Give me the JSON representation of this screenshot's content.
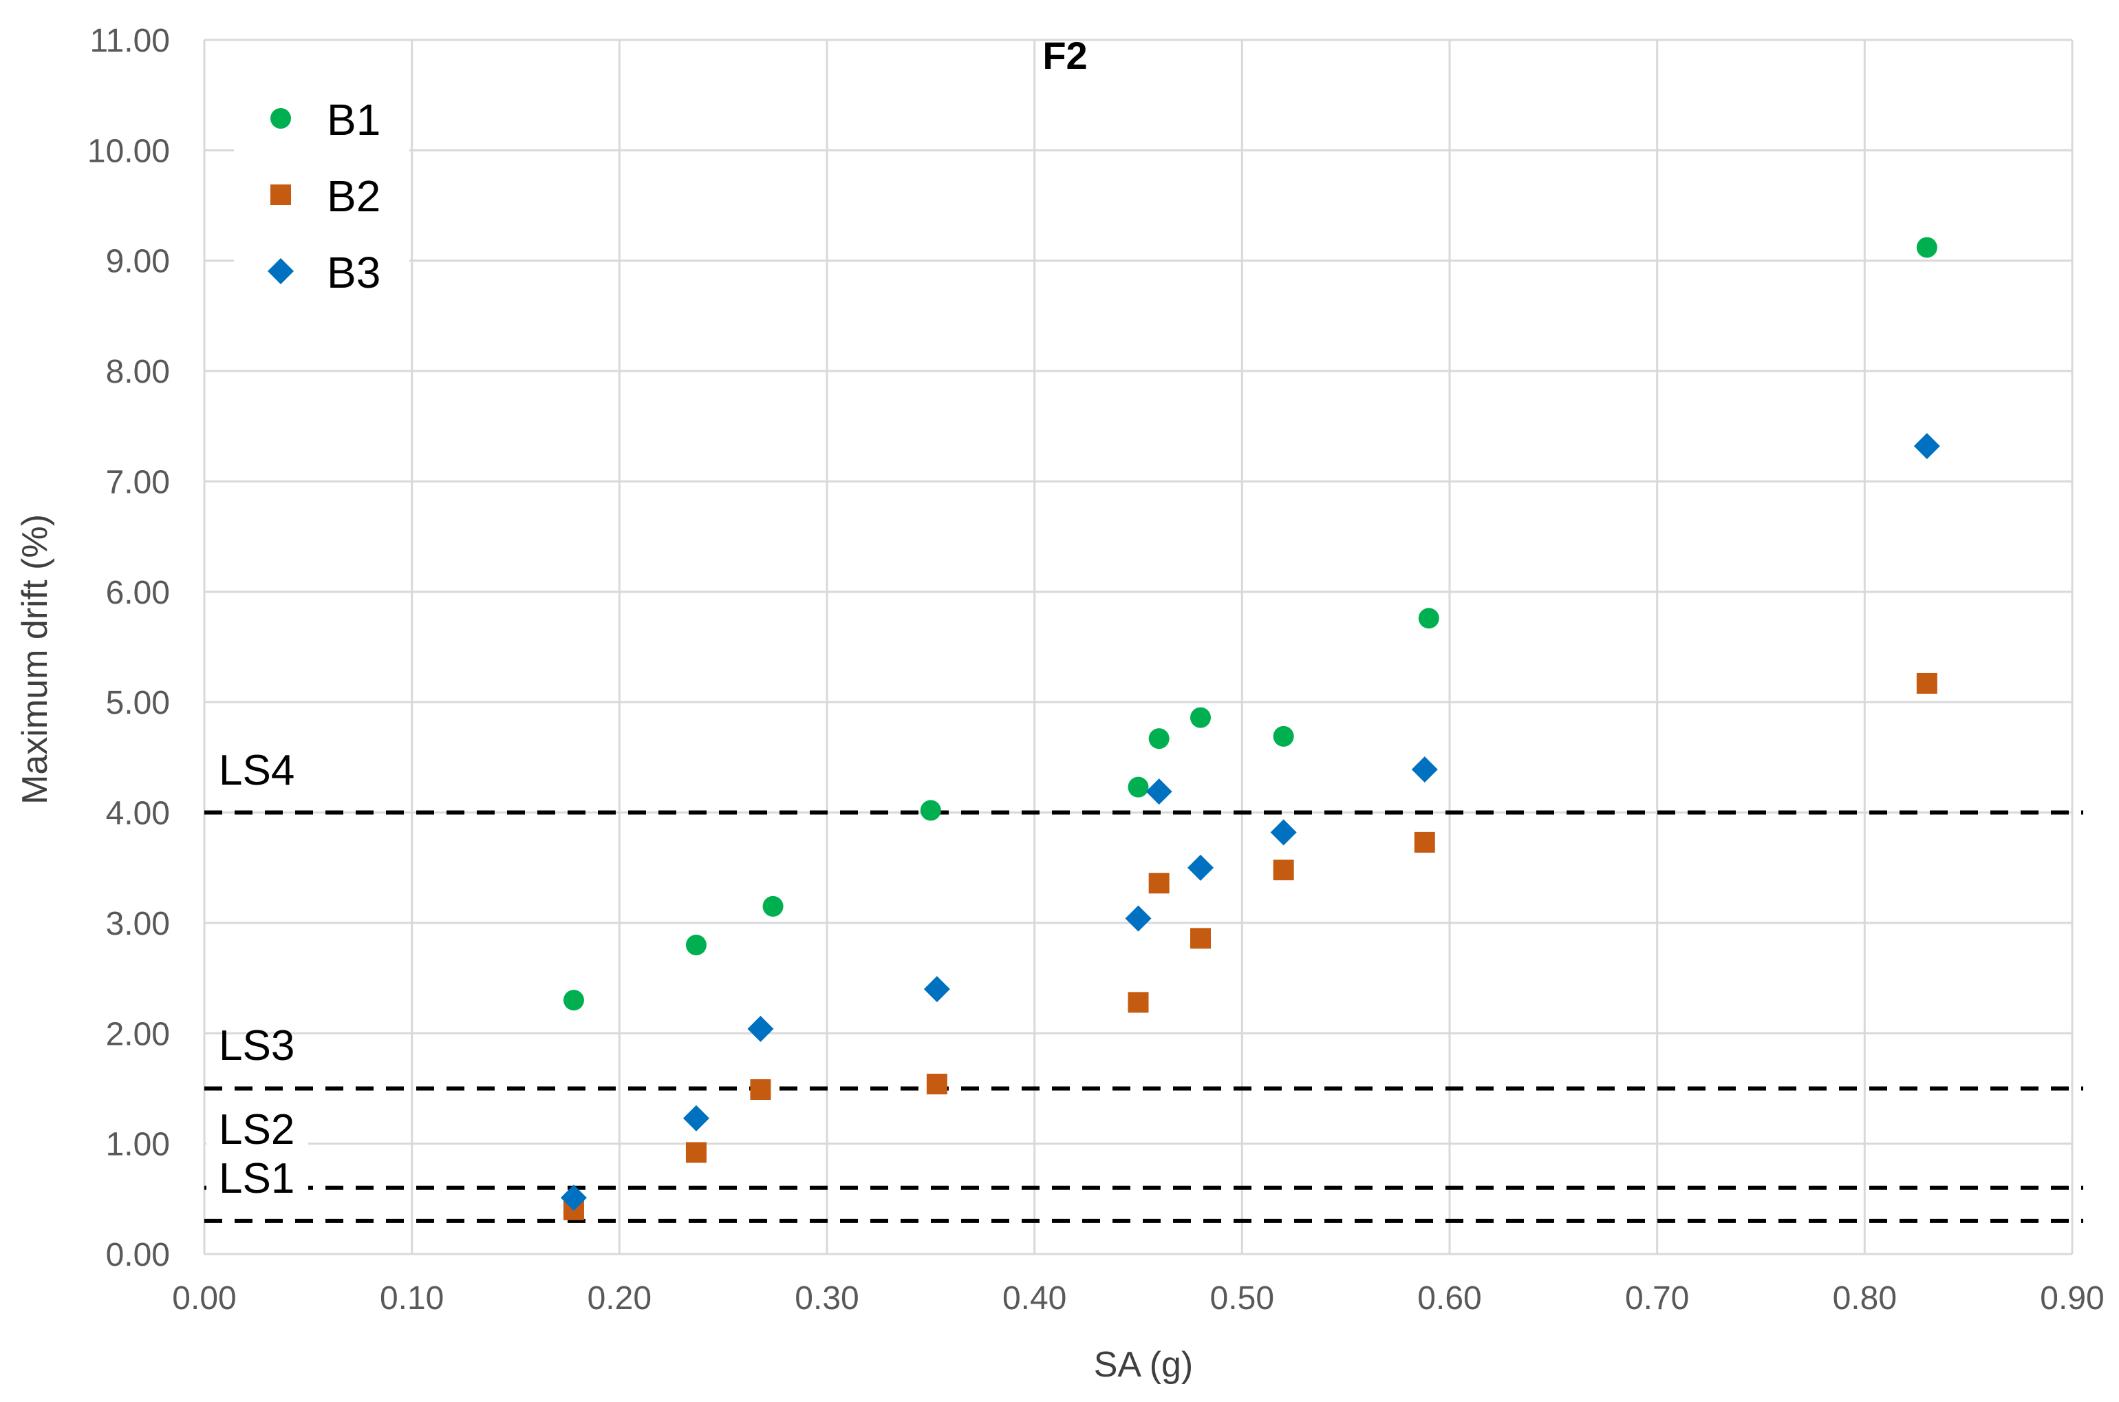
{
  "chart_data": {
    "type": "scatter",
    "title": "F2",
    "xlabel": "SA (g)",
    "ylabel": "Maximum drift (%)",
    "xlim": [
      0,
      0.9
    ],
    "ylim": [
      0,
      11
    ],
    "x_ticks": [
      "0.00",
      "0.10",
      "0.20",
      "0.30",
      "0.40",
      "0.50",
      "0.60",
      "0.70",
      "0.80",
      "0.90"
    ],
    "y_ticks": [
      "0.00",
      "1.00",
      "2.00",
      "3.00",
      "4.00",
      "5.00",
      "6.00",
      "7.00",
      "8.00",
      "9.00",
      "10.00",
      "11.00"
    ],
    "grid": true,
    "legend_position": "top-left",
    "series": [
      {
        "name": "B1",
        "marker": "circle",
        "color": "#00b050",
        "x": [
          0.178,
          0.237,
          0.274,
          0.35,
          0.45,
          0.46,
          0.48,
          0.52,
          0.59,
          0.83
        ],
        "y": [
          2.3,
          2.8,
          3.15,
          4.02,
          4.23,
          4.67,
          4.86,
          4.69,
          5.76,
          9.12
        ]
      },
      {
        "name": "B2",
        "marker": "square",
        "color": "#c55a11",
        "x": [
          0.178,
          0.237,
          0.268,
          0.353,
          0.45,
          0.46,
          0.48,
          0.52,
          0.588,
          0.83
        ],
        "y": [
          0.4,
          0.92,
          1.49,
          1.54,
          2.28,
          3.36,
          2.86,
          3.48,
          3.73,
          5.17
        ]
      },
      {
        "name": "B3",
        "marker": "diamond",
        "color": "#0070c0",
        "x": [
          0.178,
          0.237,
          0.268,
          0.353,
          0.45,
          0.46,
          0.48,
          0.52,
          0.588,
          0.83
        ],
        "y": [
          0.51,
          1.23,
          2.04,
          2.4,
          3.04,
          4.19,
          3.5,
          3.82,
          4.39,
          7.32
        ]
      }
    ],
    "reference_lines": [
      {
        "label": "LS4",
        "y": 4.0
      },
      {
        "label": "LS3",
        "y": 1.5
      },
      {
        "label": "LS2",
        "y": 0.6
      },
      {
        "label": "LS1",
        "y": 0.3
      }
    ]
  }
}
